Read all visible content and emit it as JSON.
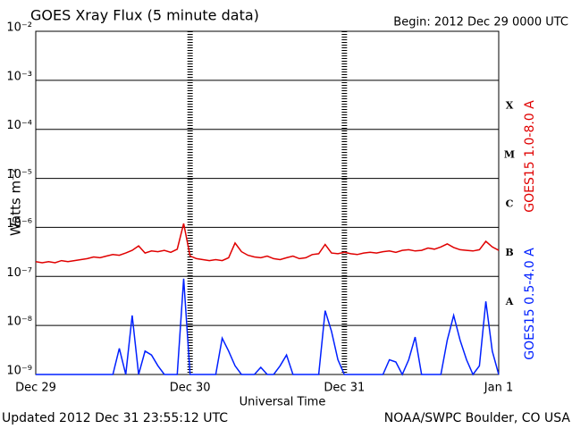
{
  "chart_data": {
    "type": "line",
    "title": "GOES Xray Flux (5 minute data)",
    "subtitle": "Begin:  2012 Dec 29 0000 UTC",
    "ylabel": "Watts m⁻²",
    "xlabel": "Universal Time",
    "footer_left": "Updated 2012 Dec 31 23:55:12 UTC",
    "footer_right": "NOAA/SWPC Boulder, CO USA",
    "log_scale": true,
    "grid": true,
    "xlim": [
      0,
      72
    ],
    "xticks": [
      {
        "value": 0,
        "label": "Dec 29"
      },
      {
        "value": 24,
        "label": "Dec 30"
      },
      {
        "value": 48,
        "label": "Dec 31"
      },
      {
        "value": 72,
        "label": "Jan 1"
      }
    ],
    "ylim": [
      1e-09,
      0.01
    ],
    "yticks": [
      {
        "value": 1e-09,
        "label": "10⁻⁹"
      },
      {
        "value": 1e-08,
        "label": "10⁻⁸"
      },
      {
        "value": 1e-07,
        "label": "10⁻⁷"
      },
      {
        "value": 1e-06,
        "label": "10⁻⁶"
      },
      {
        "value": 1e-05,
        "label": "10⁻⁵"
      },
      {
        "value": 0.0001,
        "label": "10⁻⁴"
      },
      {
        "value": 0.001,
        "label": "10⁻³"
      },
      {
        "value": 0.01,
        "label": "10⁻²"
      }
    ],
    "flare_classes": [
      {
        "value": 0.0003,
        "label": "X"
      },
      {
        "value": 3e-05,
        "label": "M"
      },
      {
        "value": 3e-06,
        "label": "C"
      },
      {
        "value": 3e-07,
        "label": "B"
      },
      {
        "value": 3e-08,
        "label": "A"
      }
    ],
    "x": [
      0,
      1,
      2,
      3,
      4,
      5,
      6,
      7,
      8,
      9,
      10,
      11,
      12,
      13,
      14,
      15,
      16,
      17,
      18,
      19,
      20,
      21,
      22,
      23,
      24,
      25,
      26,
      27,
      28,
      29,
      30,
      31,
      32,
      33,
      34,
      35,
      36,
      37,
      38,
      39,
      40,
      41,
      42,
      43,
      44,
      45,
      46,
      47,
      48,
      49,
      50,
      51,
      52,
      53,
      54,
      55,
      56,
      57,
      58,
      59,
      60,
      61,
      62,
      63,
      64,
      65,
      66,
      67,
      68,
      69,
      70,
      71,
      72
    ],
    "series": [
      {
        "name": "GOES15 1.0-8.0 A",
        "color": "#e00000",
        "values": [
          2e-07,
          1.9e-07,
          2e-07,
          1.9e-07,
          2.1e-07,
          2e-07,
          2.1e-07,
          2.2e-07,
          2.3e-07,
          2.5e-07,
          2.4e-07,
          2.6e-07,
          2.8e-07,
          2.7e-07,
          3e-07,
          3.4e-07,
          4.2e-07,
          3e-07,
          3.3e-07,
          3.2e-07,
          3.4e-07,
          3.1e-07,
          3.6e-07,
          1.2e-06,
          2.6e-07,
          2.3e-07,
          2.2e-07,
          2.1e-07,
          2.2e-07,
          2.1e-07,
          2.4e-07,
          4.8e-07,
          3.2e-07,
          2.7e-07,
          2.5e-07,
          2.4e-07,
          2.6e-07,
          2.3e-07,
          2.2e-07,
          2.4e-07,
          2.6e-07,
          2.3e-07,
          2.4e-07,
          2.8e-07,
          2.9e-07,
          4.5e-07,
          3e-07,
          2.9e-07,
          3.1e-07,
          2.9e-07,
          2.8e-07,
          3e-07,
          3.1e-07,
          3e-07,
          3.2e-07,
          3.3e-07,
          3.1e-07,
          3.4e-07,
          3.5e-07,
          3.3e-07,
          3.4e-07,
          3.8e-07,
          3.6e-07,
          4e-07,
          4.6e-07,
          3.9e-07,
          3.5e-07,
          3.4e-07,
          3.3e-07,
          3.5e-07,
          5.2e-07,
          4e-07,
          3.4e-07
        ]
      },
      {
        "name": "GOES15 0.5-4.0 A",
        "color": "#0020ff",
        "values": [
          1e-09,
          1e-09,
          1e-09,
          1e-09,
          1e-09,
          1e-09,
          1e-09,
          1e-09,
          1e-09,
          1e-09,
          1e-09,
          1e-09,
          1e-09,
          3.4e-09,
          1e-09,
          1.6e-08,
          1e-09,
          3e-09,
          2.5e-09,
          1.5e-09,
          1e-09,
          1e-09,
          1e-09,
          9e-08,
          1e-09,
          1e-09,
          1e-09,
          1e-09,
          1e-09,
          5.5e-09,
          3e-09,
          1.5e-09,
          1e-09,
          1e-09,
          1e-09,
          1.4e-09,
          1e-09,
          1e-09,
          1.5e-09,
          2.5e-09,
          1e-09,
          1e-09,
          1e-09,
          1e-09,
          1e-09,
          2e-08,
          7.6e-09,
          2e-09,
          1e-09,
          1e-09,
          1e-09,
          1e-09,
          1e-09,
          1e-09,
          1e-09,
          2e-09,
          1.8e-09,
          1e-09,
          2e-09,
          5.8e-09,
          1e-09,
          1e-09,
          1e-09,
          1e-09,
          5e-09,
          1.6e-08,
          5e-09,
          2e-09,
          1e-09,
          1.5e-09,
          3.1e-08,
          3e-09,
          1e-09
        ]
      }
    ]
  }
}
